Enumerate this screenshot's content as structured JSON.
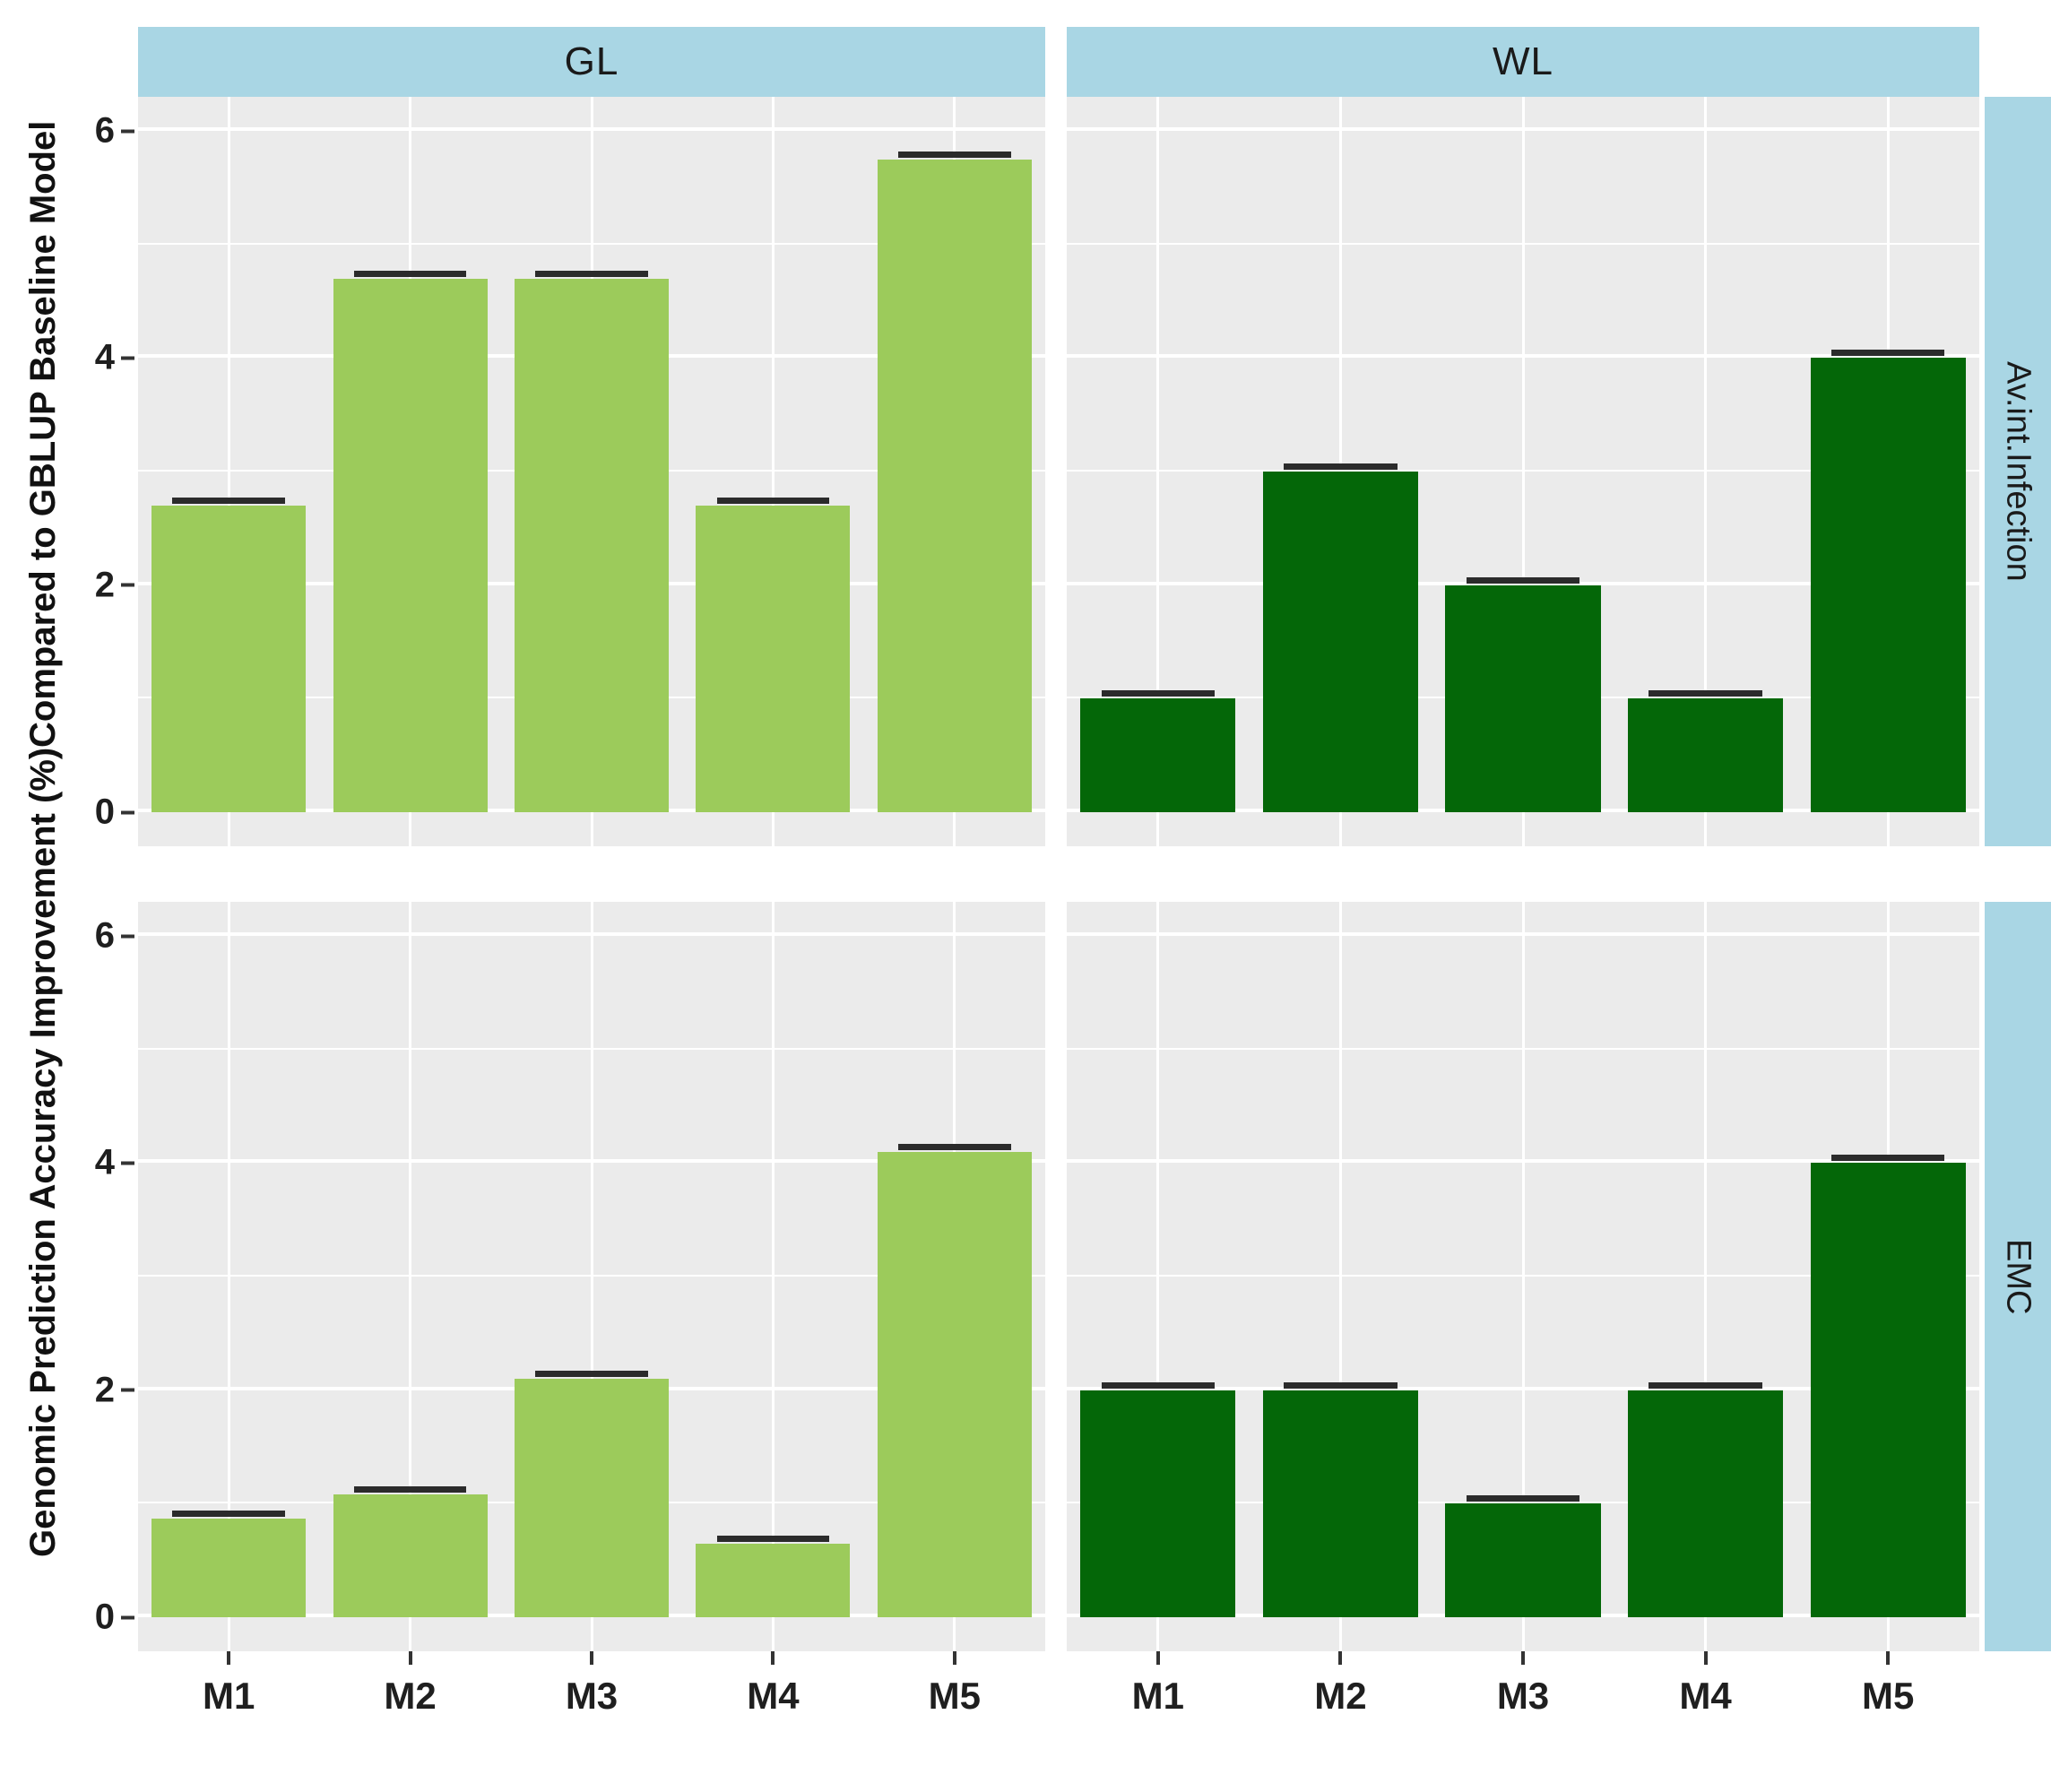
{
  "chart_data": {
    "type": "bar",
    "title": "",
    "ylabel_line1": "Genomic Prediction Accuracy Improvement (%)",
    "ylabel_line2": "Compared to GBLUP Baseline Model",
    "xlabel": "",
    "categories": [
      "M1",
      "M2",
      "M3",
      "M4",
      "M5"
    ],
    "facet_columns": [
      "GL",
      "WL"
    ],
    "facet_rows": [
      "Av.int.Infection",
      "EMC"
    ],
    "ylim": [
      0,
      6
    ],
    "yticks": [
      0,
      2,
      4,
      6
    ],
    "minor_gridlines": [
      1,
      3,
      5
    ],
    "grid": true,
    "legend_position": "none",
    "error_bar_halfwidth": 0.05,
    "bar_colors": {
      "GL": "#9CCB5B",
      "WL": "#046708"
    },
    "panels": [
      {
        "facet_col": "GL",
        "facet_row": "Av.int.Infection",
        "values": [
          2.7,
          4.7,
          4.7,
          2.7,
          5.75
        ]
      },
      {
        "facet_col": "WL",
        "facet_row": "Av.int.Infection",
        "values": [
          1.0,
          3.0,
          2.0,
          1.0,
          4.0
        ]
      },
      {
        "facet_col": "GL",
        "facet_row": "EMC",
        "values": [
          0.87,
          1.08,
          2.1,
          0.65,
          4.1
        ]
      },
      {
        "facet_col": "WL",
        "facet_row": "EMC",
        "values": [
          2.0,
          2.0,
          1.0,
          2.0,
          4.0
        ]
      }
    ]
  },
  "style": {
    "strip_bg": "#A9D6E4",
    "panel_bg": "#EBEBEB",
    "grid_color": "#FFFFFF",
    "errorbar_color": "#2B2B2B",
    "text_color": "#1F1F1F"
  }
}
